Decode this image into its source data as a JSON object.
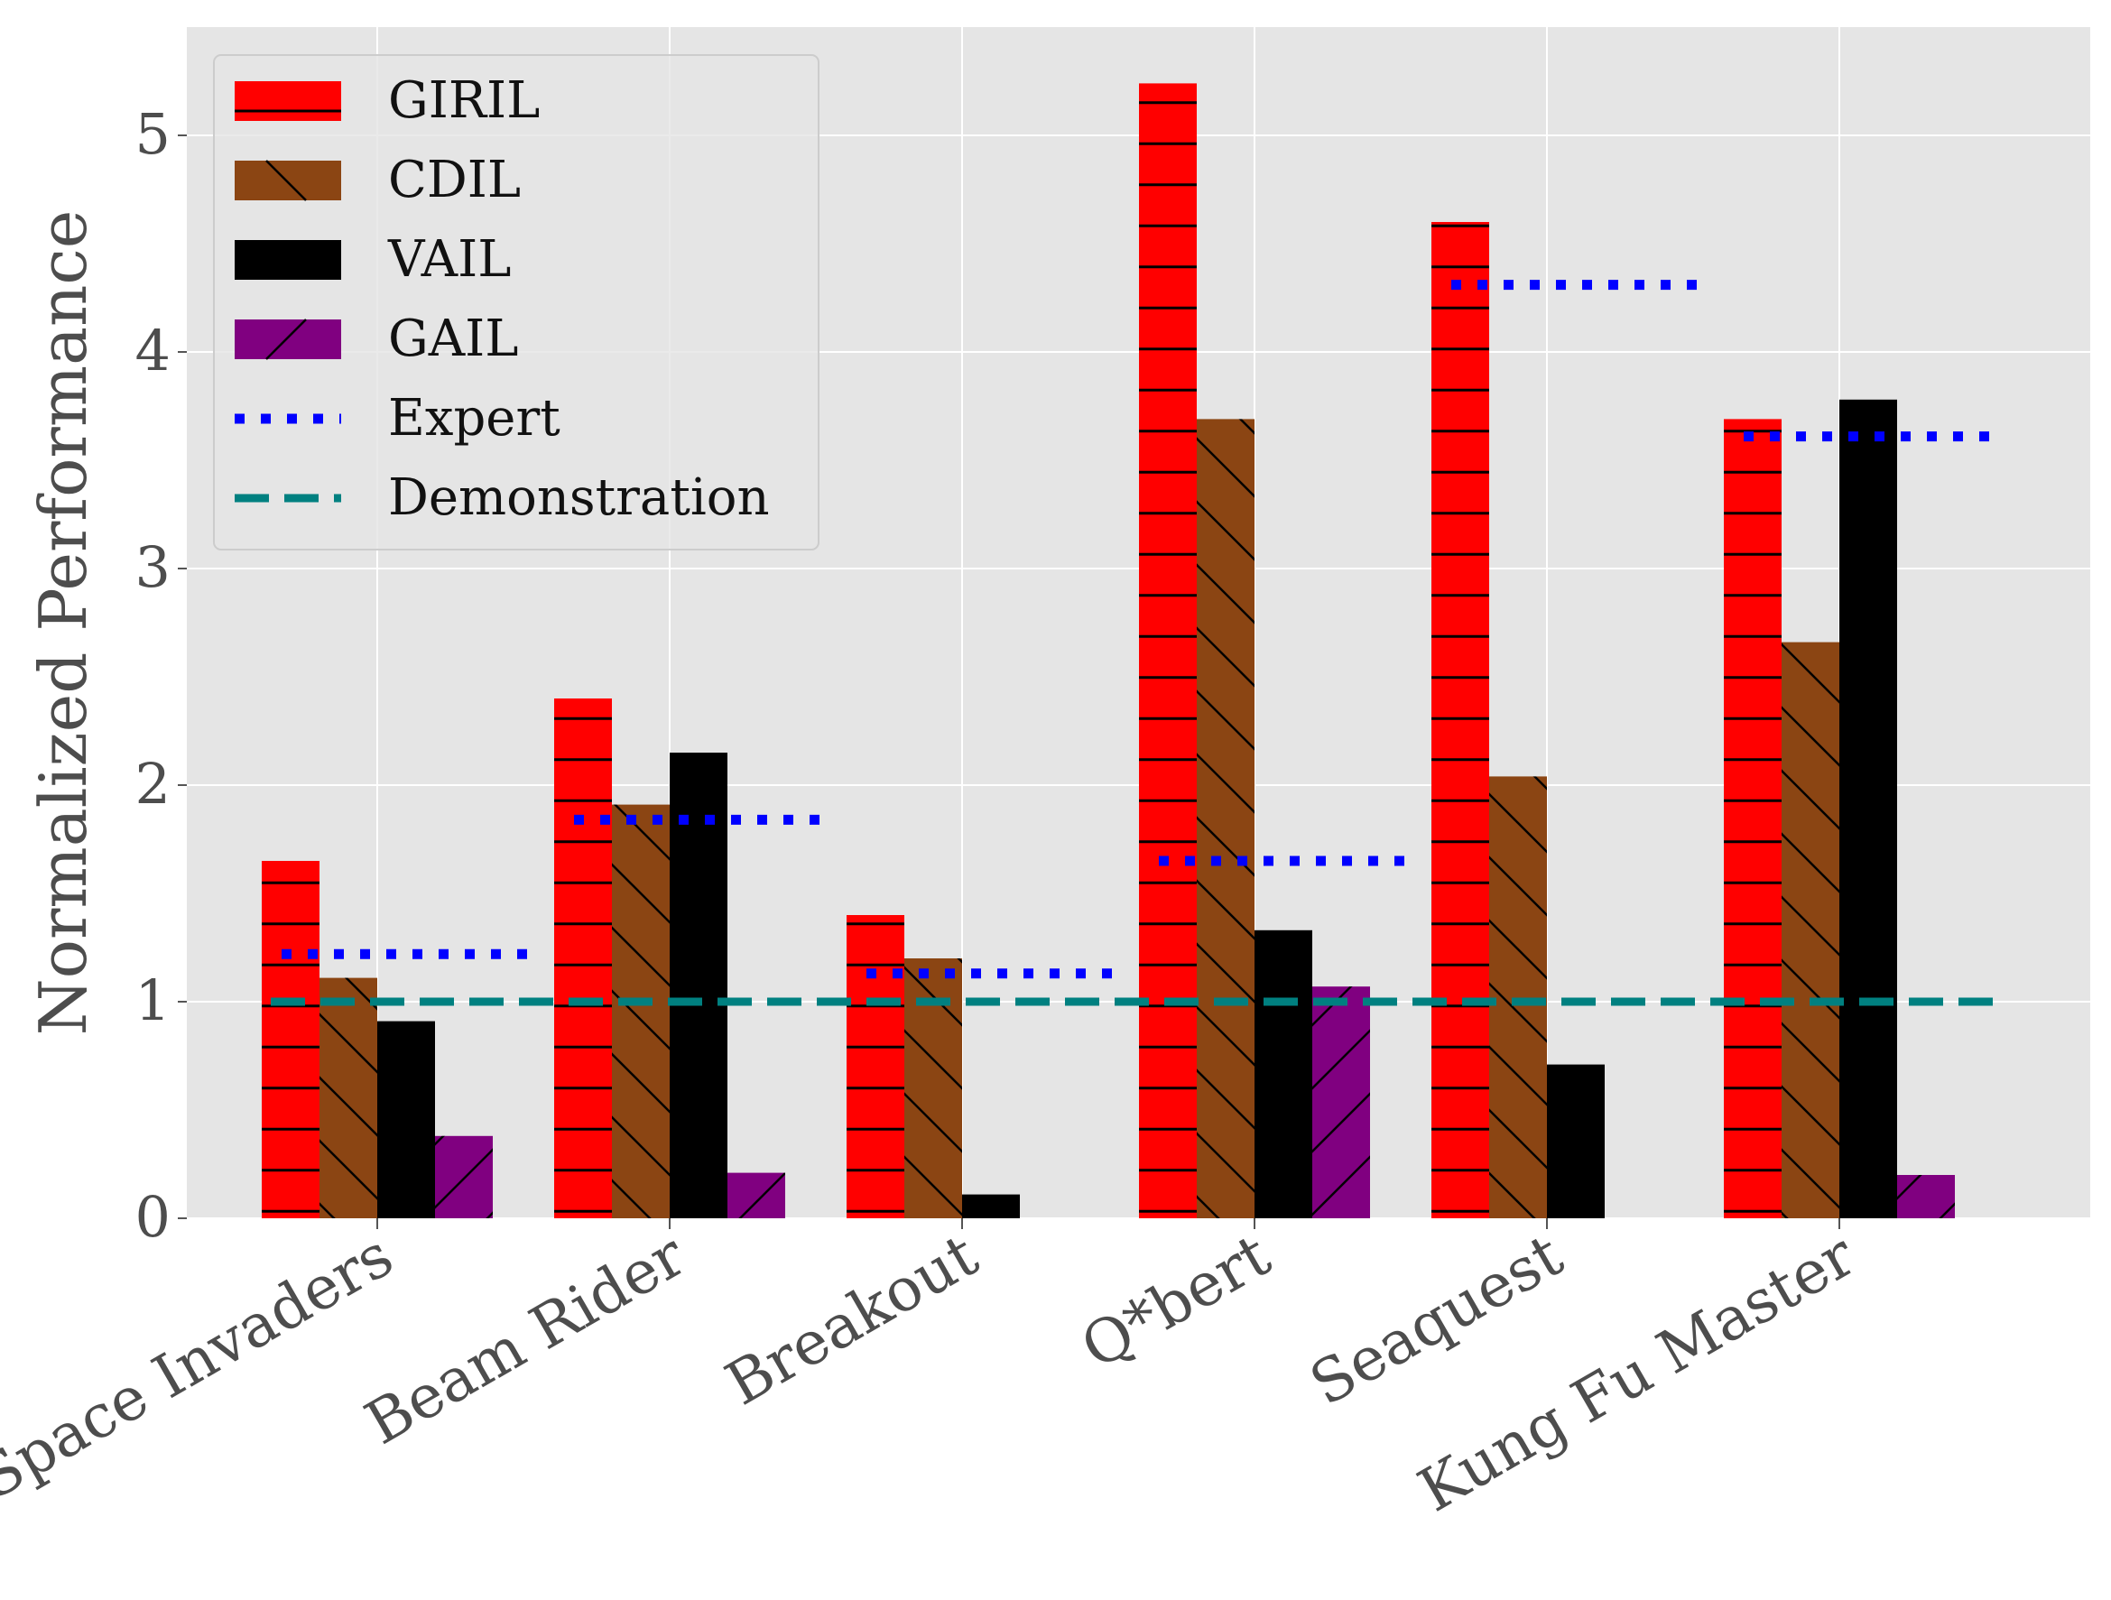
{
  "chart_data": {
    "type": "bar",
    "ylabel": "Normalized Performance",
    "xlabel": "",
    "ylim": [
      0,
      5.5
    ],
    "yticks": [
      0,
      1,
      2,
      3,
      4,
      5
    ],
    "grid": true,
    "legend_position": "top-left",
    "categories": [
      "Space Invaders",
      "Beam Rider",
      "Breakout",
      "Q*bert",
      "Seaquest",
      "Kung Fu Master"
    ],
    "series": [
      {
        "name": "GIRIL",
        "color": "#ff0000",
        "hatch": "horizontal",
        "values": [
          1.65,
          2.4,
          1.4,
          5.24,
          4.6,
          3.69
        ]
      },
      {
        "name": "CDIL",
        "color": "#8b4513",
        "hatch": "backslash",
        "values": [
          1.11,
          1.91,
          1.2,
          3.69,
          2.04,
          2.66
        ]
      },
      {
        "name": "VAIL",
        "color": "#000000",
        "hatch": "none",
        "values": [
          0.91,
          2.15,
          0.11,
          1.33,
          0.71,
          3.78
        ]
      },
      {
        "name": "GAIL",
        "color": "#800080",
        "hatch": "slash",
        "values": [
          0.38,
          0.21,
          0.0,
          1.07,
          0.0,
          0.2
        ]
      }
    ],
    "reference_lines": {
      "expert": {
        "name": "Expert",
        "color": "#0000ff",
        "style": "dotted",
        "values": [
          1.22,
          1.84,
          1.13,
          1.65,
          4.31,
          3.61
        ]
      },
      "demonstration": {
        "name": "Demonstration",
        "color": "#008080",
        "style": "dashed",
        "value": 1.0
      }
    }
  }
}
